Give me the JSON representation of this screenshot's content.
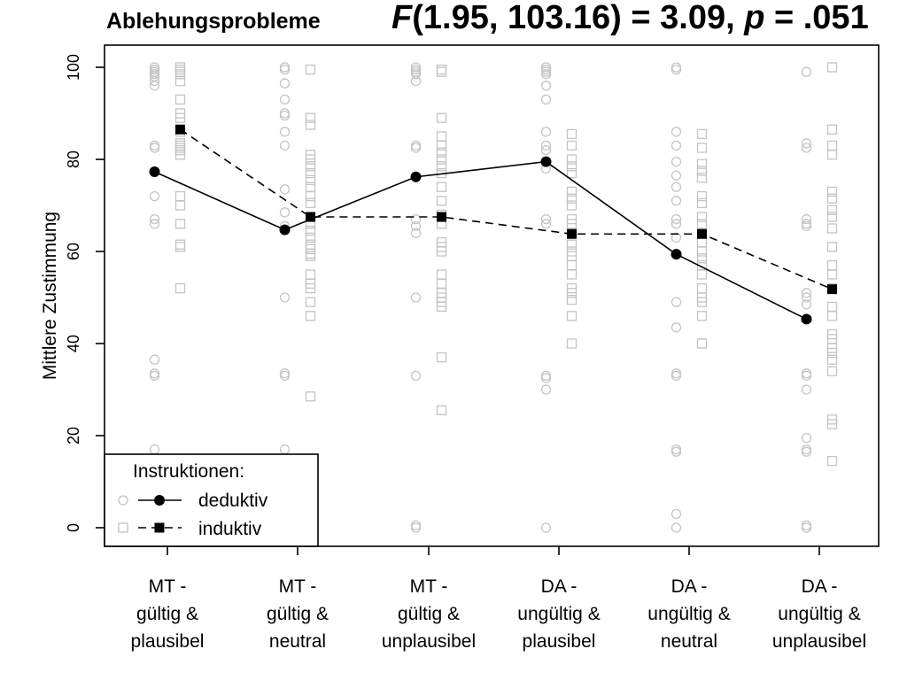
{
  "chart_data": {
    "type": "line",
    "title": "Ablehungsprobleme",
    "statistic": {
      "stat_symbol": "F",
      "stat_args": "(1.95, 103.16) = 3.09, ",
      "p_symbol": "p",
      "p_value": " = .051"
    },
    "xlabel": "",
    "ylabel": "Mittlere Zustimmung",
    "ylim": [
      0,
      100
    ],
    "yticks": [
      "0",
      "20",
      "40",
      "60",
      "80",
      "100"
    ],
    "categories": [
      [
        "MT -",
        "gültig &",
        "plausibel"
      ],
      [
        "MT -",
        "gültig &",
        "neutral"
      ],
      [
        "MT -",
        "gültig &",
        "unplausibel"
      ],
      [
        "DA -",
        "ungültig &",
        "plausibel"
      ],
      [
        "DA -",
        "ungültig &",
        "neutral"
      ],
      [
        "DA -",
        "ungültig &",
        "unplausibel"
      ]
    ],
    "legend": {
      "title": "Instruktionen:",
      "placement": "bottom-left"
    },
    "series": [
      {
        "name": "deduktiv",
        "marker": "circle",
        "line": "solid",
        "means": [
          77.3,
          64.7,
          76.2,
          79.5,
          59.4,
          45.3
        ],
        "raw": [
          [
            100,
            99.5,
            99,
            98.5,
            98,
            97,
            96,
            83,
            82.5,
            72,
            67,
            66,
            36.5,
            33.5,
            33,
            17
          ],
          [
            100,
            99.5,
            96.5,
            93,
            90,
            89.5,
            86,
            83,
            73.5,
            68.5,
            65.5,
            50,
            33.5,
            33,
            17
          ],
          [
            100,
            99.5,
            99,
            98.5,
            97,
            83,
            82.5,
            67,
            65.5,
            64,
            50,
            33,
            0.5,
            0
          ],
          [
            100,
            99.5,
            99,
            98.5,
            96,
            93,
            86,
            83,
            82,
            78,
            67,
            66,
            33,
            32.5,
            30,
            0
          ],
          [
            100,
            99.5,
            86,
            83,
            79.5,
            76.5,
            74,
            71,
            67,
            66,
            63,
            49,
            43.5,
            33.5,
            33,
            17,
            16.5,
            3,
            0
          ],
          [
            99,
            83.5,
            82.5,
            67,
            66,
            65.5,
            51,
            50,
            48.5,
            33.5,
            33,
            30,
            19.5,
            17,
            16.5,
            0.5,
            0
          ]
        ]
      },
      {
        "name": "induktiv",
        "marker": "square",
        "line": "dashed",
        "means": [
          86.5,
          67.5,
          67.5,
          63.8,
          63.8,
          51.8
        ],
        "raw": [
          [
            100,
            99.5,
            99,
            98.5,
            97,
            93,
            90,
            89,
            86,
            83.5,
            83,
            82.5,
            82,
            81,
            72,
            70,
            66,
            61.5,
            61,
            52
          ],
          [
            99.5,
            89,
            87.5,
            81,
            80,
            78.5,
            77,
            75.5,
            74,
            72,
            70.5,
            67.5,
            66,
            64.5,
            63,
            61.5,
            60.5,
            59.5,
            59,
            55,
            53,
            52,
            49,
            46,
            28.5
          ],
          [
            99.5,
            99,
            89,
            85,
            83,
            81.5,
            80,
            78.5,
            77,
            74,
            71,
            68,
            67.5,
            66,
            62,
            61,
            60,
            55,
            53,
            51,
            50,
            49,
            48,
            37,
            25.5
          ],
          [
            85.5,
            83,
            80,
            78.5,
            77,
            73,
            71.5,
            70,
            67,
            66,
            64,
            61.5,
            60,
            59,
            57,
            55,
            52,
            51,
            49.5,
            46,
            40
          ],
          [
            85.5,
            82.5,
            79,
            77.5,
            76,
            72,
            70.5,
            67.5,
            66,
            64,
            62,
            60,
            58.5,
            57,
            55,
            52,
            50,
            49,
            46,
            40
          ],
          [
            100,
            86.5,
            83,
            81,
            73,
            71.5,
            69,
            67.5,
            65,
            61,
            57,
            55,
            52,
            48,
            46,
            42,
            41,
            39,
            38,
            36.5,
            34,
            23.5,
            22.5,
            14.5
          ]
        ]
      }
    ],
    "colors": {
      "raw_points": "#c4c4c4",
      "mean": "#000000"
    }
  }
}
